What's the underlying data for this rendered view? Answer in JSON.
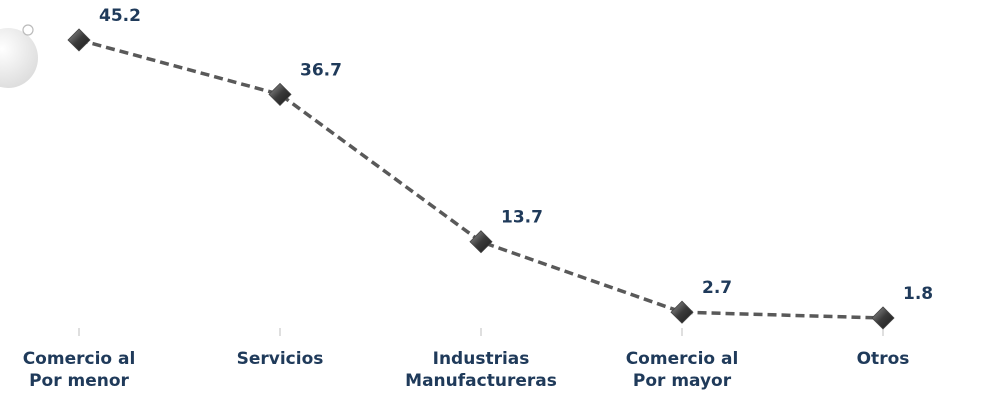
{
  "chart_data": {
    "type": "line",
    "categories": [
      "Comercio al\nPor menor",
      "Servicios",
      "Industrias\nManufactureras",
      "Comercio al\nPor mayor",
      "Otros"
    ],
    "values": [
      45.2,
      36.7,
      13.7,
      2.7,
      1.8
    ],
    "color": "#595959",
    "ylim": [
      0,
      50
    ]
  }
}
